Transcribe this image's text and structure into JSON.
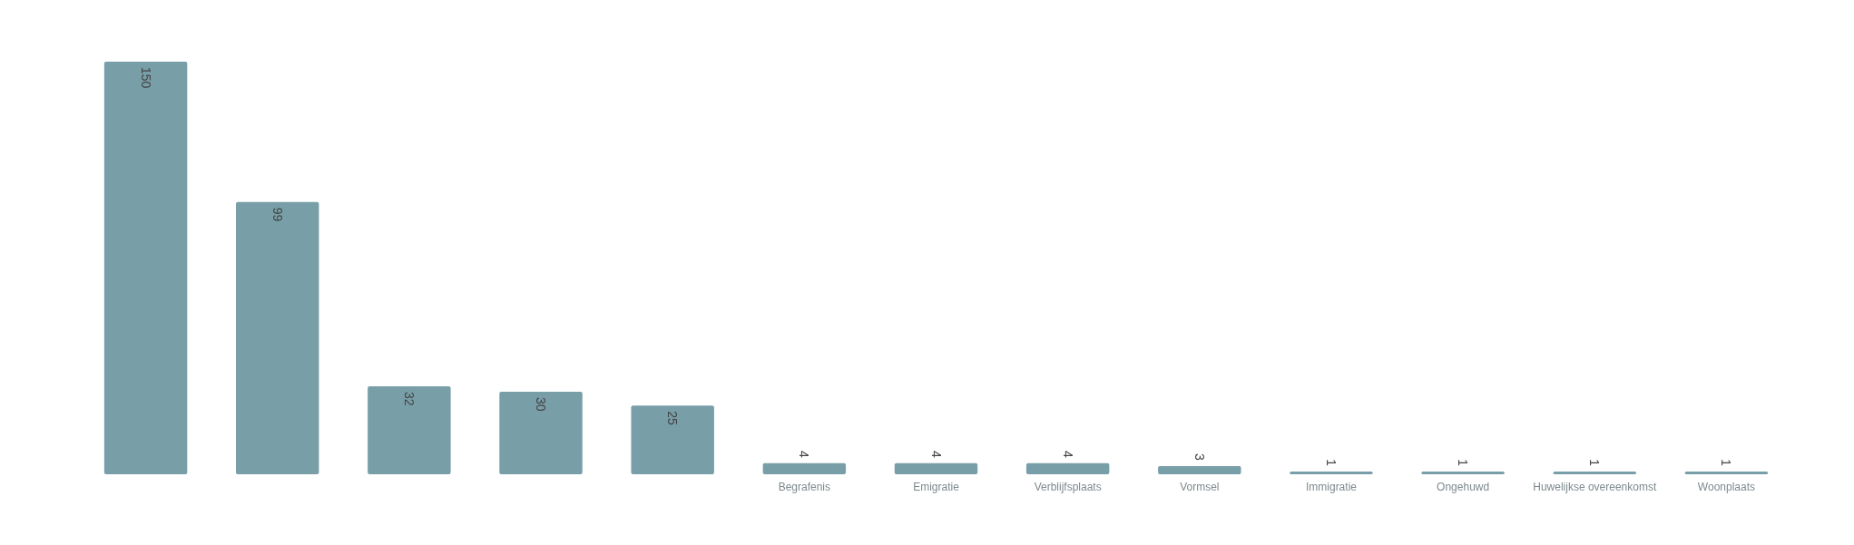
{
  "chart_data": {
    "type": "bar",
    "categories": [
      null,
      null,
      null,
      null,
      null,
      "Begrafenis",
      "Emigratie",
      "Verblijfsplaats",
      "Vormsel",
      "Immigratie",
      "Ongehuwd",
      "Huwelijkse overeenkomst",
      "Woonplaats"
    ],
    "values": [
      150,
      99,
      32,
      30,
      25,
      4,
      4,
      4,
      3,
      1,
      1,
      1,
      1
    ],
    "color": "#789ea8",
    "data_labels": true,
    "grid": false
  }
}
